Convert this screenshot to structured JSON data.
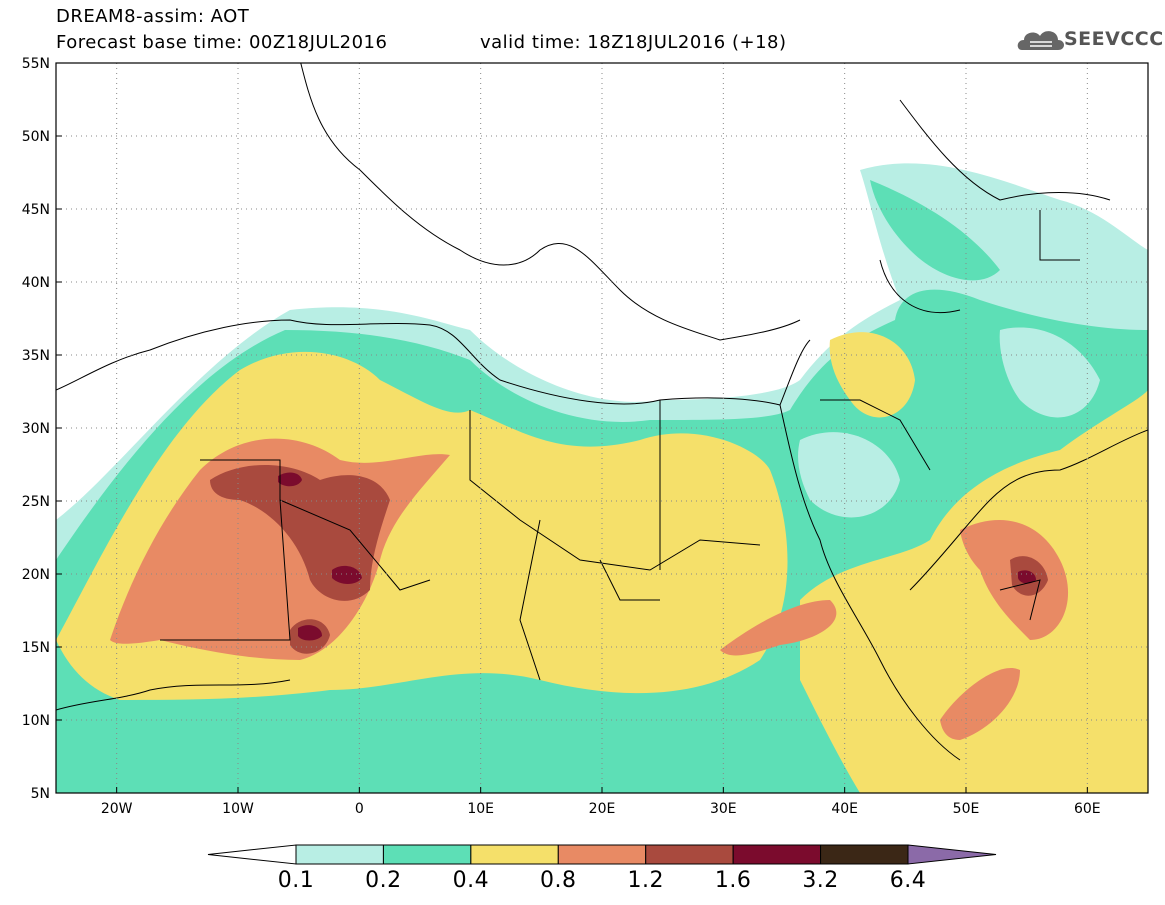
{
  "header": {
    "line1": "DREAM8-assim: AOT",
    "line2": "Forecast base time: 00Z18JUL2016",
    "line2b": "valid time: 18Z18JUL2016 (+18)",
    "logo_text": "SEEVCCC",
    "logo_icon": "cloud-icon"
  },
  "map": {
    "lat_labels": [
      "55N",
      "50N",
      "45N",
      "40N",
      "35N",
      "30N",
      "25N",
      "20N",
      "15N",
      "10N",
      "5N"
    ],
    "lon_labels": [
      "20W",
      "10W",
      "0",
      "10E",
      "20E",
      "30E",
      "40E",
      "50E",
      "60E"
    ],
    "lat_range": [
      5,
      55
    ],
    "lon_range": [
      -25,
      65
    ],
    "grid": "dotted"
  },
  "colorbar": {
    "labels": [
      "0.1",
      "0.2",
      "0.4",
      "0.8",
      "1.2",
      "1.6",
      "3.2",
      "6.4"
    ],
    "colors": [
      "#ffffff",
      "#b8eee4",
      "#5ddfb6",
      "#f5e06a",
      "#e88a64",
      "#a94a3e",
      "#7b0b2d",
      "#3b2716",
      "#8b6aa8"
    ]
  }
}
